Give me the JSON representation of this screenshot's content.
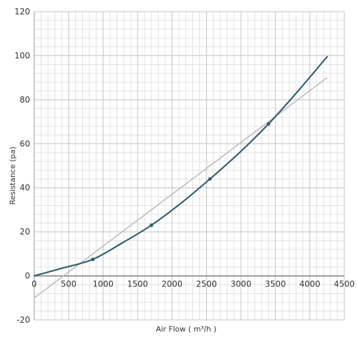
{
  "chart_data": {
    "type": "line",
    "xlabel": "Air Flow ( m³/h )",
    "ylabel": "Resistance (pa)",
    "xlim": [
      0,
      4500
    ],
    "ylim": [
      -20,
      120
    ],
    "x_ticks": [
      0,
      500,
      1000,
      1500,
      2000,
      2500,
      3000,
      3500,
      4000,
      4500
    ],
    "x_tick_labels": [
      "0",
      "500",
      "1000",
      "1500",
      "2000",
      "2500",
      "3000",
      "3500",
      "4000",
      "4500"
    ],
    "y_ticks": [
      -20,
      0,
      20,
      40,
      60,
      80,
      100,
      120
    ],
    "y_tick_labels": [
      "-20",
      "0",
      "20",
      "40",
      "60",
      "80",
      "100",
      "120"
    ],
    "minor_x_step": 100,
    "minor_y_step": 4,
    "grid": true,
    "series": [
      {
        "style": "curve",
        "color": "#2f5f6e",
        "x": [
          0,
          420,
          850,
          1280,
          1700,
          2130,
          2550,
          2980,
          3400,
          3830,
          4250
        ],
        "y": [
          0,
          3.6,
          7.5,
          15,
          23,
          33,
          44,
          56,
          69,
          84,
          99.5
        ]
      },
      {
        "style": "markers",
        "color": "#2f5f6e",
        "x": [
          850,
          1700,
          2550,
          3400
        ],
        "y": [
          7.5,
          23,
          44,
          69
        ]
      },
      {
        "style": "trendline",
        "color": "#b8b8b8",
        "x": [
          0,
          4250
        ],
        "y": [
          -10,
          90
        ]
      }
    ]
  }
}
